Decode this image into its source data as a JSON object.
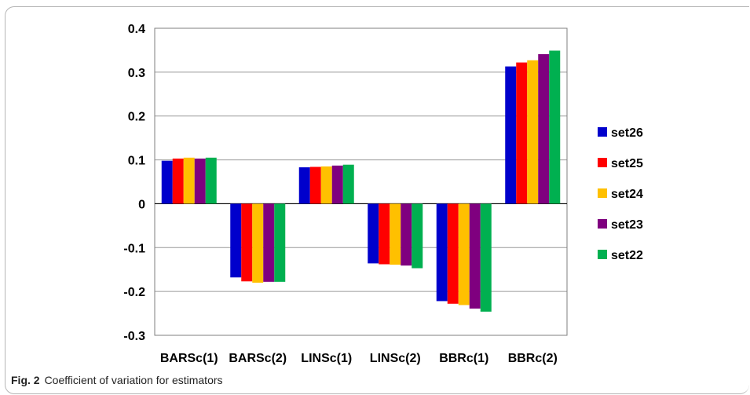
{
  "caption": {
    "label": "Fig. 2",
    "text": "Coefficient of variation for estimators"
  },
  "chart_data": {
    "type": "bar",
    "categories": [
      "BARSc(1)",
      "BARSc(2)",
      "LINSc(1)",
      "LINSc(2)",
      "BBRc(1)",
      "BBRc(2)"
    ],
    "series": [
      {
        "name": "set26",
        "color": "#0000cc",
        "values": [
          0.098,
          -0.168,
          0.083,
          -0.136,
          -0.222,
          0.313
        ]
      },
      {
        "name": "set25",
        "color": "#ff0000",
        "values": [
          0.103,
          -0.177,
          0.084,
          -0.138,
          -0.228,
          0.322
        ]
      },
      {
        "name": "set24",
        "color": "#ffc000",
        "values": [
          0.105,
          -0.18,
          0.085,
          -0.139,
          -0.231,
          0.327
        ]
      },
      {
        "name": "set23",
        "color": "#7f007f",
        "values": [
          0.103,
          -0.178,
          0.087,
          -0.141,
          -0.239,
          0.341
        ]
      },
      {
        "name": "set22",
        "color": "#00b050",
        "values": [
          0.105,
          -0.178,
          0.089,
          -0.147,
          -0.246,
          0.349
        ]
      }
    ],
    "yticks": [
      "0.4",
      "0.3",
      "0.2",
      "0.1",
      "0",
      "-0.1",
      "-0.2",
      "-0.3"
    ],
    "ylim": [
      -0.3,
      0.4
    ],
    "grid": true,
    "legend_position": "right",
    "title": "",
    "xlabel": "",
    "ylabel": ""
  }
}
